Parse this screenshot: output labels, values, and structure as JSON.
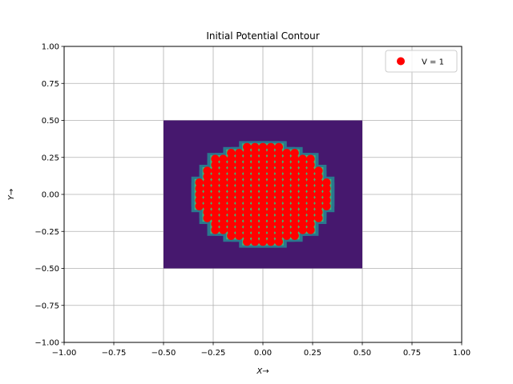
{
  "chart_data": {
    "type": "scatter",
    "title": "Initial Potential Contour",
    "xlabel": "X→",
    "ylabel": "Y→",
    "xlim": [
      -1.0,
      1.0
    ],
    "ylim": [
      -1.0,
      1.0
    ],
    "xticks": [
      "−1.00",
      "−0.75",
      "−0.50",
      "−0.25",
      "0.00",
      "0.25",
      "0.50",
      "0.75",
      "1.00"
    ],
    "yticks": [
      "−1.00",
      "−0.75",
      "−0.50",
      "−0.25",
      "0.00",
      "0.25",
      "0.50",
      "0.75",
      "1.00"
    ],
    "xtick_values": [
      -1.0,
      -0.75,
      -0.5,
      -0.25,
      0.0,
      0.25,
      0.5,
      0.75,
      1.0
    ],
    "ytick_values": [
      -1.0,
      -0.75,
      -0.5,
      -0.25,
      0.0,
      0.25,
      0.5,
      0.75,
      1.0
    ],
    "grid": true,
    "legend_position": "top-right",
    "contour_region": {
      "x": [
        -0.5,
        0.5
      ],
      "y": [
        -0.5,
        0.5
      ]
    },
    "contour_background_color": "#46186e",
    "point_region_radius": 0.34,
    "point_spacing": 0.04,
    "series": [
      {
        "name": "V = 1",
        "color": "#ff0000",
        "value": 1
      }
    ],
    "colors": {
      "edge_inner": "#f5e51f",
      "edge_mid": "#3cbb75",
      "edge_outer": "#2a788e"
    }
  }
}
